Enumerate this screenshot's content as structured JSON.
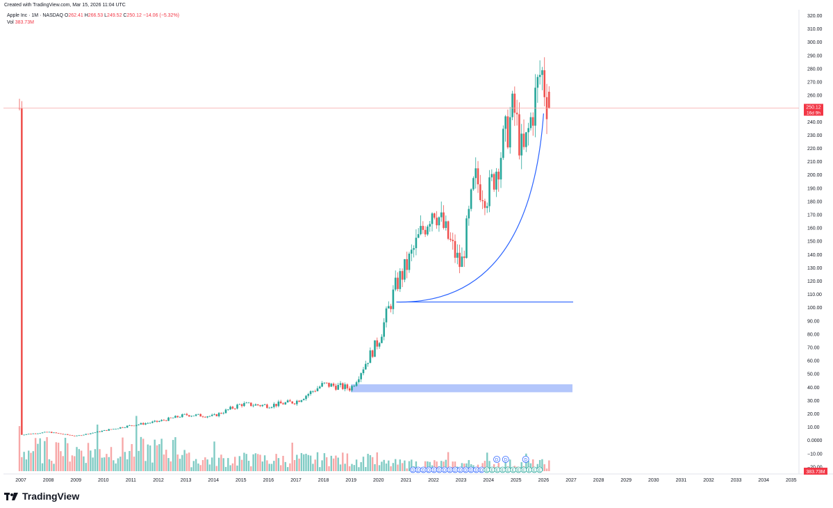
{
  "header": {
    "created": "Created with TradingView.com, Mar 15, 2026 11:04 UTC"
  },
  "legend": {
    "symbol": "Apple Inc · 1M · NASDAQ",
    "o_label": "O",
    "o_value": "262.41",
    "h_label": "H",
    "h_value": "266.53",
    "l_label": "L",
    "l_value": "249.52",
    "c_label": "C",
    "c_value": "250.12",
    "change": "−14.06 (−5.32%)",
    "vol_label": "Vol",
    "vol_value": "383.73M"
  },
  "brand": {
    "name": "TradingView"
  },
  "colors": {
    "up": "#26a69a",
    "down": "#ef5350",
    "vol_up": "#80cbc4",
    "vol_down": "#f7a7a7",
    "curve": "#2962ff",
    "zone": "#b3c6fb",
    "price_line": "#f7a7a7"
  },
  "chart_data": {
    "type": "candlestick",
    "title": "Apple Inc · 1M · NASDAQ",
    "y_axis": {
      "ticks": [
        "320.00",
        "310.00",
        "300.00",
        "290.00",
        "280.00",
        "270.00",
        "260.00",
        "250.00",
        "240.00",
        "230.00",
        "220.00",
        "210.00",
        "200.00",
        "190.00",
        "180.00",
        "170.00",
        "160.00",
        "150.00",
        "140.00",
        "130.00",
        "120.00",
        "110.00",
        "100.00",
        "90.00",
        "80.00",
        "70.00",
        "60.00",
        "50.00",
        "40.00",
        "30.00",
        "20.00",
        "10.00",
        "0.0000",
        "−10.00",
        "−20.00"
      ],
      "scale": "log-like"
    },
    "x_axis": {
      "ticks": [
        "2007",
        "2008",
        "2009",
        "2010",
        "2011",
        "2012",
        "2013",
        "2014",
        "2015",
        "2016",
        "2017",
        "2018",
        "2019",
        "2020",
        "2021",
        "2022",
        "2023",
        "2024",
        "2025",
        "2026",
        "2027",
        "2028",
        "2029",
        "2030",
        "2031",
        "2032",
        "2033",
        "2034",
        "2035"
      ]
    },
    "last_price": {
      "value": "250.12",
      "countdown": "16d 9h"
    },
    "volume_label": "383.73M",
    "key_points": [
      {
        "date": "2007",
        "close": 4
      },
      {
        "date": "2008",
        "close": 6
      },
      {
        "date": "2009",
        "close": 3
      },
      {
        "date": "2010",
        "close": 7
      },
      {
        "date": "2011",
        "close": 11
      },
      {
        "date": "2012",
        "close": 14
      },
      {
        "date": "2013",
        "close": 19
      },
      {
        "date": "2014",
        "close": 18
      },
      {
        "date": "2015",
        "close": 27
      },
      {
        "date": "2016",
        "close": 26
      },
      {
        "date": "2017",
        "close": 29
      },
      {
        "date": "2018",
        "close": 42
      },
      {
        "date": "2019",
        "close": 39
      },
      {
        "date": "2020",
        "close": 75
      },
      {
        "date": "2020-09",
        "close": 118
      },
      {
        "date": "2021",
        "close": 130
      },
      {
        "date": "2022",
        "close": 177
      },
      {
        "date": "2023",
        "close": 130
      },
      {
        "date": "2023-07",
        "close": 196
      },
      {
        "date": "2024",
        "close": 185
      },
      {
        "date": "2024-12",
        "close": 250
      },
      {
        "date": "2025-04",
        "close": 212
      },
      {
        "date": "2025-12",
        "close": 280
      },
      {
        "date": "2026-03",
        "close": 250.12
      }
    ],
    "annotations": {
      "support_zone": {
        "from": 36,
        "to": 42,
        "label": ""
      },
      "horizontal_line": {
        "value": 104
      },
      "curve": "parabolic support from 2020 low to 2026"
    },
    "event_markers": [
      "D",
      "D",
      "D",
      "D",
      "D",
      "D",
      "D",
      "D",
      "D",
      "D",
      "D",
      "D",
      "D",
      "D",
      "E",
      "E",
      "E",
      "E",
      "E",
      "E",
      "E",
      "E",
      "E",
      "E",
      "E"
    ]
  }
}
